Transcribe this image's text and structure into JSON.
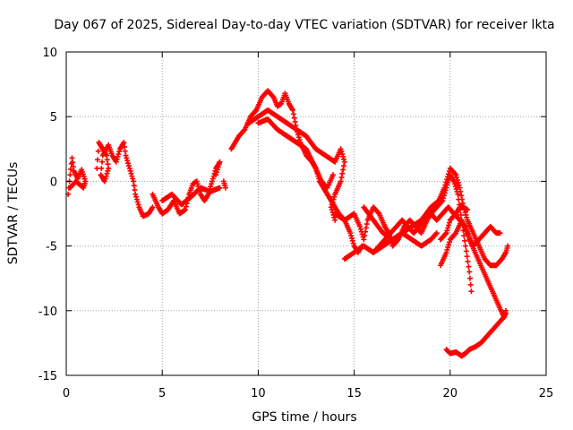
{
  "chart_data": {
    "type": "scatter",
    "title": "Day 067 of 2025, Sidereal Day-to-day VTEC variation (SDTVAR) for receiver lkta",
    "xlabel": "GPS time / hours",
    "ylabel": "SDTVAR / TECUs",
    "xlim": [
      0,
      25
    ],
    "ylim": [
      -15,
      10
    ],
    "xticks": [
      0,
      5,
      10,
      15,
      20,
      25
    ],
    "yticks": [
      -15,
      -10,
      -5,
      0,
      5,
      10
    ],
    "grid": true,
    "marker": "+",
    "series": [
      {
        "name": "SDTVAR",
        "color": "#ff0000",
        "tracks": [
          [
            [
              0.1,
              -1.0
            ],
            [
              0.2,
              0.5
            ],
            [
              0.3,
              1.8
            ],
            [
              0.4,
              0.8
            ],
            [
              0.6,
              0.2
            ],
            [
              0.8,
              0.9
            ],
            [
              1.0,
              0.0
            ],
            [
              0.9,
              -0.5
            ],
            [
              0.5,
              0.0
            ],
            [
              0.2,
              -0.5
            ]
          ],
          [
            [
              1.6,
              1.0
            ],
            [
              1.7,
              3.0
            ],
            [
              1.9,
              2.5
            ],
            [
              2.1,
              2.0
            ],
            [
              2.2,
              1.0
            ],
            [
              2.0,
              0.0
            ],
            [
              1.8,
              0.5
            ],
            [
              1.9,
              2.0
            ],
            [
              2.2,
              2.8
            ],
            [
              2.4,
              2.0
            ],
            [
              2.6,
              1.5
            ],
            [
              2.8,
              2.5
            ],
            [
              3.0,
              3.0
            ],
            [
              3.1,
              2.0
            ],
            [
              3.3,
              1.0
            ],
            [
              3.5,
              0.0
            ],
            [
              3.6,
              -1.0
            ],
            [
              3.8,
              -2.0
            ],
            [
              4.0,
              -2.7
            ],
            [
              4.3,
              -2.5
            ],
            [
              4.5,
              -2.0
            ]
          ],
          [
            [
              4.5,
              -1.0
            ],
            [
              4.8,
              -2.0
            ],
            [
              5.0,
              -2.5
            ],
            [
              5.3,
              -2.2
            ],
            [
              5.6,
              -1.5
            ],
            [
              5.9,
              -2.5
            ],
            [
              6.2,
              -2.2
            ],
            [
              6.4,
              -1.0
            ],
            [
              6.6,
              -0.2
            ],
            [
              6.8,
              0.0
            ],
            [
              7.0,
              -1.0
            ],
            [
              7.2,
              -1.5
            ],
            [
              7.4,
              -1.0
            ],
            [
              7.6,
              0.0
            ],
            [
              7.8,
              1.0
            ],
            [
              8.0,
              1.5
            ],
            [
              7.8,
              0.5
            ]
          ],
          [
            [
              5.0,
              -1.5
            ],
            [
              5.5,
              -1.0
            ],
            [
              6.0,
              -1.8
            ],
            [
              6.5,
              -1.2
            ],
            [
              7.0,
              -0.5
            ],
            [
              7.5,
              -0.8
            ],
            [
              8.0,
              -0.5
            ]
          ],
          [
            [
              8.2,
              0.0
            ],
            [
              8.3,
              -0.5
            ]
          ],
          [
            [
              8.6,
              2.5
            ],
            [
              9.0,
              3.5
            ],
            [
              9.3,
              4.0
            ],
            [
              9.6,
              5.0
            ],
            [
              9.9,
              5.5
            ],
            [
              10.2,
              6.5
            ],
            [
              10.5,
              7.0
            ],
            [
              10.8,
              6.5
            ],
            [
              11.0,
              5.8
            ],
            [
              11.2,
              6.0
            ],
            [
              11.4,
              6.8
            ],
            [
              11.6,
              6.0
            ],
            [
              11.8,
              5.5
            ],
            [
              12.0,
              4.0
            ],
            [
              12.2,
              3.0
            ],
            [
              12.5,
              2.0
            ],
            [
              12.8,
              1.5
            ],
            [
              13.0,
              1.0
            ],
            [
              13.2,
              0.0
            ],
            [
              13.4,
              -0.5
            ],
            [
              13.6,
              -1.0
            ],
            [
              13.8,
              -1.5
            ],
            [
              14.0,
              -2.0
            ],
            [
              14.2,
              -2.5
            ],
            [
              14.5,
              -3.0
            ],
            [
              14.8,
              -4.0
            ],
            [
              15.0,
              -5.0
            ],
            [
              15.2,
              -5.5
            ],
            [
              15.4,
              -5.0
            ]
          ],
          [
            [
              9.5,
              4.5
            ],
            [
              10.0,
              5.0
            ],
            [
              10.5,
              5.5
            ],
            [
              11.0,
              5.0
            ],
            [
              11.5,
              4.5
            ],
            [
              12.0,
              4.0
            ],
            [
              12.5,
              3.5
            ],
            [
              13.0,
              2.5
            ],
            [
              13.5,
              2.0
            ],
            [
              14.0,
              1.5
            ],
            [
              14.3,
              2.5
            ],
            [
              14.5,
              1.5
            ],
            [
              14.3,
              0.0
            ],
            [
              14.0,
              -1.0
            ],
            [
              13.8,
              -2.0
            ],
            [
              14.0,
              -3.0
            ]
          ],
          [
            [
              10.0,
              4.5
            ],
            [
              10.5,
              4.8
            ],
            [
              11.0,
              4.0
            ],
            [
              11.5,
              3.5
            ],
            [
              12.0,
              3.0
            ],
            [
              12.5,
              2.5
            ],
            [
              13.0,
              1.0
            ],
            [
              13.3,
              0.0
            ],
            [
              13.6,
              -0.5
            ],
            [
              13.9,
              0.5
            ]
          ],
          [
            [
              14.0,
              -2.5
            ],
            [
              14.5,
              -3.0
            ],
            [
              15.0,
              -2.5
            ],
            [
              15.3,
              -3.5
            ],
            [
              15.5,
              -4.5
            ],
            [
              15.7,
              -3.0
            ],
            [
              16.0,
              -2.0
            ],
            [
              16.3,
              -2.5
            ],
            [
              16.6,
              -3.5
            ],
            [
              16.8,
              -4.0
            ],
            [
              17.0,
              -5.0
            ],
            [
              17.3,
              -4.5
            ],
            [
              17.6,
              -3.5
            ],
            [
              17.9,
              -3.0
            ],
            [
              18.2,
              -3.5
            ],
            [
              18.5,
              -4.0
            ],
            [
              18.8,
              -3.0
            ],
            [
              19.0,
              -2.5
            ],
            [
              19.3,
              -2.0
            ],
            [
              19.6,
              -1.5
            ],
            [
              19.8,
              -0.5
            ],
            [
              20.0,
              0.5
            ],
            [
              20.2,
              0.0
            ],
            [
              20.4,
              -1.0
            ],
            [
              20.6,
              -3.0
            ],
            [
              20.8,
              -5.0
            ],
            [
              21.0,
              -7.0
            ],
            [
              21.1,
              -8.5
            ]
          ],
          [
            [
              14.5,
              -6.0
            ],
            [
              15.0,
              -5.5
            ],
            [
              15.5,
              -5.0
            ],
            [
              16.0,
              -5.5
            ],
            [
              16.3,
              -5.0
            ],
            [
              16.6,
              -4.5
            ],
            [
              16.9,
              -4.0
            ],
            [
              17.2,
              -3.5
            ],
            [
              17.5,
              -3.0
            ],
            [
              17.8,
              -3.5
            ],
            [
              18.1,
              -4.0
            ],
            [
              18.4,
              -3.5
            ],
            [
              18.7,
              -3.0
            ],
            [
              19.0,
              -2.5
            ],
            [
              19.3,
              -3.0
            ],
            [
              19.6,
              -2.5
            ],
            [
              19.9,
              -2.0
            ],
            [
              20.2,
              -2.5
            ],
            [
              20.5,
              -3.0
            ],
            [
              20.8,
              -3.5
            ],
            [
              21.0,
              -4.5
            ],
            [
              21.3,
              -5.5
            ],
            [
              21.6,
              -6.5
            ],
            [
              21.9,
              -7.5
            ],
            [
              22.2,
              -8.5
            ],
            [
              22.5,
              -9.5
            ],
            [
              22.8,
              -10.5
            ],
            [
              22.9,
              -10.0
            ]
          ],
          [
            [
              15.5,
              -2.0
            ],
            [
              16.0,
              -3.0
            ],
            [
              16.5,
              -4.0
            ],
            [
              17.0,
              -4.5
            ],
            [
              17.5,
              -4.0
            ],
            [
              18.0,
              -3.5
            ],
            [
              18.5,
              -3.0
            ],
            [
              19.0,
              -2.0
            ],
            [
              19.4,
              -1.5
            ],
            [
              19.7,
              -0.5
            ],
            [
              20.0,
              1.0
            ],
            [
              20.3,
              0.5
            ],
            [
              20.5,
              -0.5
            ],
            [
              20.7,
              -2.0
            ],
            [
              20.9,
              -3.0
            ],
            [
              21.2,
              -4.0
            ],
            [
              21.5,
              -5.0
            ],
            [
              21.8,
              -6.0
            ],
            [
              22.1,
              -6.5
            ],
            [
              22.4,
              -6.5
            ],
            [
              22.7,
              -6.0
            ],
            [
              22.9,
              -5.5
            ],
            [
              23.0,
              -5.0
            ]
          ],
          [
            [
              16.0,
              -5.5
            ],
            [
              16.5,
              -5.0
            ],
            [
              17.0,
              -4.5
            ],
            [
              17.5,
              -4.0
            ],
            [
              18.0,
              -4.5
            ],
            [
              18.5,
              -5.0
            ],
            [
              19.0,
              -4.5
            ],
            [
              19.3,
              -4.0
            ]
          ],
          [
            [
              19.5,
              -6.5
            ],
            [
              19.8,
              -5.5
            ],
            [
              20.0,
              -4.5
            ],
            [
              20.3,
              -4.0
            ],
            [
              20.6,
              -3.0
            ],
            [
              20.9,
              -4.0
            ],
            [
              21.2,
              -5.0
            ],
            [
              21.5,
              -4.5
            ],
            [
              21.8,
              -4.0
            ],
            [
              22.1,
              -3.5
            ],
            [
              22.4,
              -4.0
            ],
            [
              22.6,
              -4.0
            ]
          ],
          [
            [
              19.5,
              -4.5
            ],
            [
              19.8,
              -4.0
            ],
            [
              20.0,
              -3.0
            ],
            [
              20.3,
              -2.5
            ],
            [
              20.5,
              -2.0
            ],
            [
              20.7,
              -2.0
            ],
            [
              20.9,
              -2.2
            ]
          ],
          [
            [
              19.8,
              -13.0
            ],
            [
              20.0,
              -13.3
            ],
            [
              20.3,
              -13.2
            ],
            [
              20.6,
              -13.5
            ],
            [
              20.8,
              -13.3
            ],
            [
              21.0,
              -13.0
            ],
            [
              21.3,
              -12.8
            ],
            [
              21.6,
              -12.5
            ],
            [
              21.9,
              -12.0
            ],
            [
              22.2,
              -11.5
            ],
            [
              22.5,
              -11.0
            ],
            [
              22.8,
              -10.5
            ],
            [
              22.9,
              -10.2
            ]
          ]
        ]
      }
    ]
  }
}
